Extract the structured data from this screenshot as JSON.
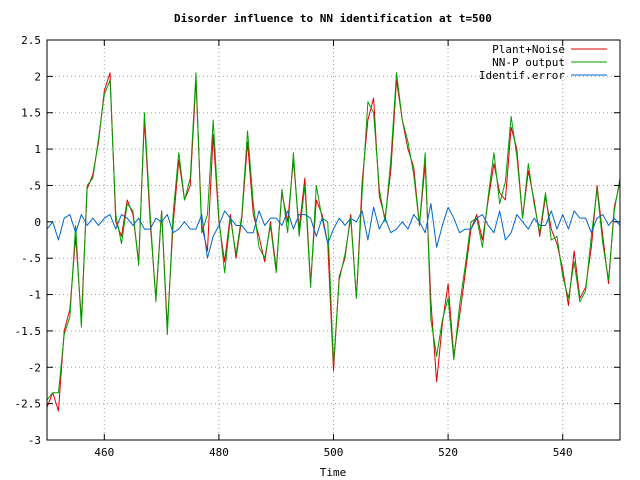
{
  "chart_data": {
    "type": "line",
    "title": "Disorder influence to NN identification at t=500",
    "xlabel": "Time",
    "ylabel": "",
    "xlim": [
      450,
      550
    ],
    "ylim": [
      -3,
      2.5
    ],
    "xticks": [
      460,
      480,
      500,
      520,
      540
    ],
    "yticks": [
      -3,
      -2.5,
      -2,
      -1.5,
      -1,
      -0.5,
      0,
      0.5,
      1,
      1.5,
      2,
      2.5
    ],
    "grid": true,
    "legend_position": "top-right",
    "x": [
      450,
      451,
      452,
      453,
      454,
      455,
      456,
      457,
      458,
      459,
      460,
      461,
      462,
      463,
      464,
      465,
      466,
      467,
      468,
      469,
      470,
      471,
      472,
      473,
      474,
      475,
      476,
      477,
      478,
      479,
      480,
      481,
      482,
      483,
      484,
      485,
      486,
      487,
      488,
      489,
      490,
      491,
      492,
      493,
      494,
      495,
      496,
      497,
      498,
      499,
      500,
      501,
      502,
      503,
      504,
      505,
      506,
      507,
      508,
      509,
      510,
      511,
      512,
      513,
      514,
      515,
      516,
      517,
      518,
      519,
      520,
      521,
      522,
      523,
      524,
      525,
      526,
      527,
      528,
      529,
      530,
      531,
      532,
      533,
      534,
      535,
      536,
      537,
      538,
      539,
      540,
      541,
      542,
      543,
      544,
      545,
      546,
      547,
      548,
      549,
      550
    ],
    "series": [
      {
        "name": "Plant+Noise",
        "color": "#e00000",
        "values": [
          -2.55,
          -2.35,
          -2.6,
          -1.5,
          -1.2,
          -0.2,
          -1.35,
          0.45,
          0.65,
          1.1,
          1.8,
          2.05,
          0.0,
          -0.2,
          0.3,
          0.1,
          -0.55,
          1.4,
          0.0,
          -1.05,
          0.15,
          -1.45,
          -0.05,
          0.85,
          0.3,
          0.5,
          1.95,
          -0.05,
          -0.4,
          1.2,
          0.0,
          -0.55,
          0.1,
          -0.5,
          0.05,
          1.1,
          0.1,
          -0.2,
          -0.55,
          0.0,
          -0.65,
          0.4,
          0.0,
          0.85,
          -0.1,
          0.6,
          -0.85,
          0.3,
          0.1,
          -0.3,
          -2.05,
          -0.75,
          -0.5,
          0.1,
          -1.05,
          0.55,
          1.4,
          1.7,
          0.35,
          0.05,
          0.7,
          1.95,
          1.4,
          1.0,
          0.75,
          -0.05,
          0.8,
          -1.1,
          -2.2,
          -1.4,
          -0.85,
          -1.85,
          -1.3,
          -0.7,
          -0.1,
          0.1,
          -0.25,
          0.3,
          0.8,
          0.4,
          0.3,
          1.3,
          1.0,
          0.05,
          0.7,
          0.3,
          -0.2,
          0.35,
          -0.1,
          -0.3,
          -0.65,
          -1.15,
          -0.4,
          -1.05,
          -0.9,
          -0.35,
          0.5,
          -0.2,
          -0.85,
          0.2,
          0.55
        ]
      },
      {
        "name": "NN-P output",
        "color": "#00a000",
        "values": [
          -2.45,
          -2.35,
          -2.35,
          -1.55,
          -1.3,
          -0.05,
          -1.45,
          0.5,
          0.6,
          1.15,
          1.75,
          1.95,
          0.1,
          -0.3,
          0.25,
          0.15,
          -0.6,
          1.5,
          0.1,
          -1.1,
          0.15,
          -1.55,
          0.1,
          0.95,
          0.3,
          0.6,
          2.05,
          -0.15,
          0.1,
          1.4,
          0.05,
          -0.7,
          0.05,
          -0.45,
          0.1,
          1.25,
          0.25,
          -0.35,
          -0.5,
          -0.05,
          -0.7,
          0.45,
          -0.15,
          0.95,
          -0.2,
          0.5,
          -0.9,
          0.5,
          0.05,
          0.0,
          -1.95,
          -0.8,
          -0.45,
          0.05,
          -1.05,
          0.4,
          1.65,
          1.5,
          0.45,
          0.0,
          0.85,
          2.05,
          1.4,
          1.1,
          0.65,
          -0.05,
          0.95,
          -1.35,
          -1.85,
          -1.35,
          -1.05,
          -1.9,
          -1.15,
          -0.6,
          0.0,
          0.05,
          -0.35,
          0.35,
          0.95,
          0.25,
          0.55,
          1.45,
          0.9,
          0.05,
          0.8,
          0.25,
          -0.15,
          0.4,
          -0.25,
          -0.2,
          -0.75,
          -1.05,
          -0.55,
          -1.1,
          -0.95,
          -0.2,
          0.45,
          -0.3,
          -0.8,
          0.15,
          0.6
        ]
      },
      {
        "name": "Identif.error",
        "color": "#0066cc",
        "values": [
          -0.1,
          0.0,
          -0.25,
          0.05,
          0.1,
          -0.15,
          0.1,
          -0.05,
          0.05,
          -0.05,
          0.05,
          0.1,
          -0.1,
          0.1,
          0.05,
          -0.05,
          0.05,
          -0.1,
          -0.1,
          0.05,
          0.0,
          0.1,
          -0.15,
          -0.1,
          0.0,
          -0.1,
          -0.1,
          0.1,
          -0.5,
          -0.2,
          -0.05,
          0.15,
          0.05,
          -0.05,
          -0.05,
          -0.15,
          -0.15,
          0.15,
          -0.05,
          0.05,
          0.05,
          -0.05,
          0.15,
          -0.1,
          0.1,
          0.1,
          0.05,
          -0.2,
          0.05,
          -0.3,
          -0.1,
          0.05,
          -0.05,
          0.05,
          0.0,
          0.15,
          -0.25,
          0.2,
          -0.1,
          0.05,
          -0.15,
          -0.1,
          0.0,
          -0.1,
          0.1,
          0.0,
          -0.15,
          0.25,
          -0.35,
          -0.05,
          0.2,
          0.05,
          -0.15,
          -0.1,
          -0.1,
          0.05,
          0.1,
          -0.05,
          -0.15,
          0.15,
          -0.25,
          -0.15,
          0.1,
          0.0,
          -0.1,
          0.05,
          -0.05,
          -0.05,
          0.15,
          -0.1,
          0.1,
          -0.1,
          0.15,
          0.05,
          0.05,
          -0.15,
          0.05,
          0.1,
          -0.05,
          0.05,
          -0.05
        ]
      }
    ]
  }
}
